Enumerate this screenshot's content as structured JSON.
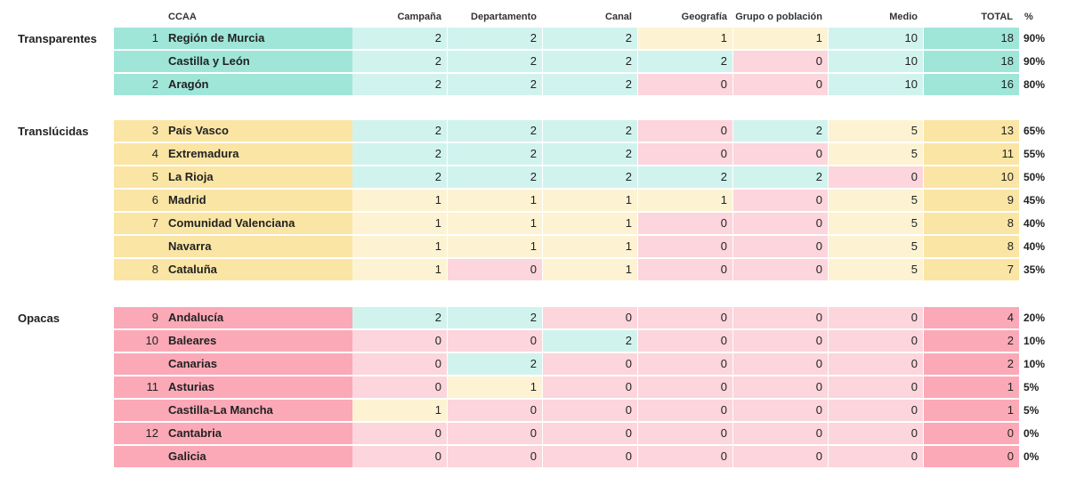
{
  "headers": {
    "ccaa": "CCAA",
    "campana": "Campaña",
    "departamento": "Departamento",
    "canal": "Canal",
    "geografia": "Geografía",
    "grupo": "Grupo o población",
    "medio": "Medio",
    "total": "TOTAL",
    "pct": "%"
  },
  "colors": {
    "dark_green": "#9fe6d9",
    "light_green": "#d1f3ee",
    "dark_yellow": "#fae5a4",
    "light_yellow": "#fdf3d2",
    "dark_pink": "#fba9b7",
    "light_pink": "#fdd5dc"
  },
  "groups": [
    {
      "label": "Transparentes",
      "level": "high",
      "rows": [
        {
          "rank": "1",
          "name": "Región de Murcia",
          "campana": 2,
          "departamento": 2,
          "canal": 2,
          "geografia": 1,
          "grupo": 1,
          "medio": 10,
          "total": 18,
          "pct": "90%"
        },
        {
          "rank": "",
          "name": "Castilla y León",
          "campana": 2,
          "departamento": 2,
          "canal": 2,
          "geografia": 2,
          "grupo": 0,
          "medio": 10,
          "total": 18,
          "pct": "90%"
        },
        {
          "rank": "2",
          "name": "Aragón",
          "campana": 2,
          "departamento": 2,
          "canal": 2,
          "geografia": 0,
          "grupo": 0,
          "medio": 10,
          "total": 16,
          "pct": "80%"
        }
      ]
    },
    {
      "label": "Translúcidas",
      "level": "mid",
      "rows": [
        {
          "rank": "3",
          "name": "País Vasco",
          "campana": 2,
          "departamento": 2,
          "canal": 2,
          "geografia": 0,
          "grupo": 2,
          "medio": 5,
          "total": 13,
          "pct": "65%"
        },
        {
          "rank": "4",
          "name": "Extremadura",
          "campana": 2,
          "departamento": 2,
          "canal": 2,
          "geografia": 0,
          "grupo": 0,
          "medio": 5,
          "total": 11,
          "pct": "55%"
        },
        {
          "rank": "5",
          "name": "La Rioja",
          "campana": 2,
          "departamento": 2,
          "canal": 2,
          "geografia": 2,
          "grupo": 2,
          "medio": 0,
          "total": 10,
          "pct": "50%"
        },
        {
          "rank": "6",
          "name": "Madrid",
          "campana": 1,
          "departamento": 1,
          "canal": 1,
          "geografia": 1,
          "grupo": 0,
          "medio": 5,
          "total": 9,
          "pct": "45%"
        },
        {
          "rank": "7",
          "name": "Comunidad Valenciana",
          "campana": 1,
          "departamento": 1,
          "canal": 1,
          "geografia": 0,
          "grupo": 0,
          "medio": 5,
          "total": 8,
          "pct": "40%"
        },
        {
          "rank": "",
          "name": "Navarra",
          "campana": 1,
          "departamento": 1,
          "canal": 1,
          "geografia": 0,
          "grupo": 0,
          "medio": 5,
          "total": 8,
          "pct": "40%"
        },
        {
          "rank": "8",
          "name": "Cataluña",
          "campana": 1,
          "departamento": 0,
          "canal": 1,
          "geografia": 0,
          "grupo": 0,
          "medio": 5,
          "total": 7,
          "pct": "35%"
        }
      ]
    },
    {
      "label": "Opacas",
      "level": "low",
      "rows": [
        {
          "rank": "9",
          "name": "Andalucía",
          "campana": 2,
          "departamento": 2,
          "canal": 0,
          "geografia": 0,
          "grupo": 0,
          "medio": 0,
          "total": 4,
          "pct": "20%"
        },
        {
          "rank": "10",
          "name": "Baleares",
          "campana": 0,
          "departamento": 0,
          "canal": 2,
          "geografia": 0,
          "grupo": 0,
          "medio": 0,
          "total": 2,
          "pct": "10%"
        },
        {
          "rank": "",
          "name": "Canarias",
          "campana": 0,
          "departamento": 2,
          "canal": 0,
          "geografia": 0,
          "grupo": 0,
          "medio": 0,
          "total": 2,
          "pct": "10%"
        },
        {
          "rank": "11",
          "name": "Asturias",
          "campana": 0,
          "departamento": 1,
          "canal": 0,
          "geografia": 0,
          "grupo": 0,
          "medio": 0,
          "total": 1,
          "pct": "5%"
        },
        {
          "rank": "",
          "name": "Castilla-La Mancha",
          "campana": 1,
          "departamento": 0,
          "canal": 0,
          "geografia": 0,
          "grupo": 0,
          "medio": 0,
          "total": 1,
          "pct": "5%"
        },
        {
          "rank": "12",
          "name": "Cantabria",
          "campana": 0,
          "departamento": 0,
          "canal": 0,
          "geografia": 0,
          "grupo": 0,
          "medio": 0,
          "total": 0,
          "pct": "0%"
        },
        {
          "rank": "",
          "name": "Galicia",
          "campana": 0,
          "departamento": 0,
          "canal": 0,
          "geografia": 0,
          "grupo": 0,
          "medio": 0,
          "total": 0,
          "pct": "0%"
        }
      ]
    }
  ]
}
